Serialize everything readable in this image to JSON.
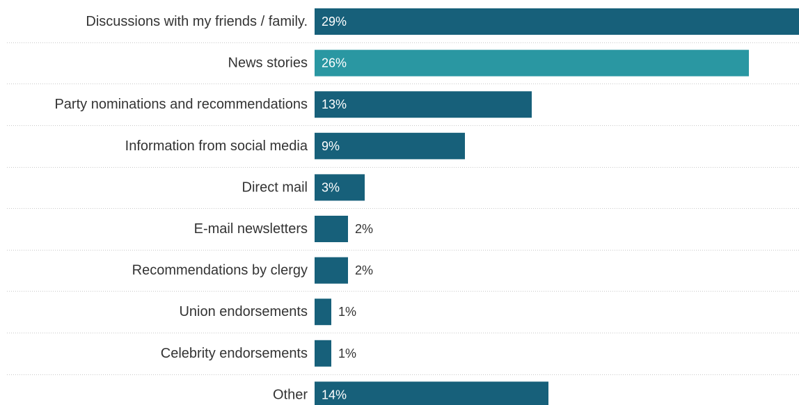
{
  "chart_data": {
    "type": "bar",
    "orientation": "horizontal",
    "categories": [
      "Discussions with my friends / family.",
      "News stories",
      "Party nominations and recommendations",
      "Information from social media",
      "Direct mail",
      "E-mail newsletters",
      "Recommendations by clergy",
      "Union endorsements",
      "Celebrity endorsements",
      "Other"
    ],
    "values": [
      29,
      26,
      13,
      9,
      3,
      2,
      2,
      1,
      1,
      14
    ],
    "value_labels": [
      "29%",
      "26%",
      "13%",
      "9%",
      "3%",
      "2%",
      "2%",
      "1%",
      "1%",
      "14%"
    ],
    "highlight_index": 1,
    "colors": {
      "bar": "#17607a",
      "highlight": "#2a97a2",
      "label_inside": "#ffffff",
      "label_outside": "#333333"
    },
    "xlim": [
      0,
      29
    ],
    "grid": "dotted separators between rows",
    "legend": "none"
  }
}
